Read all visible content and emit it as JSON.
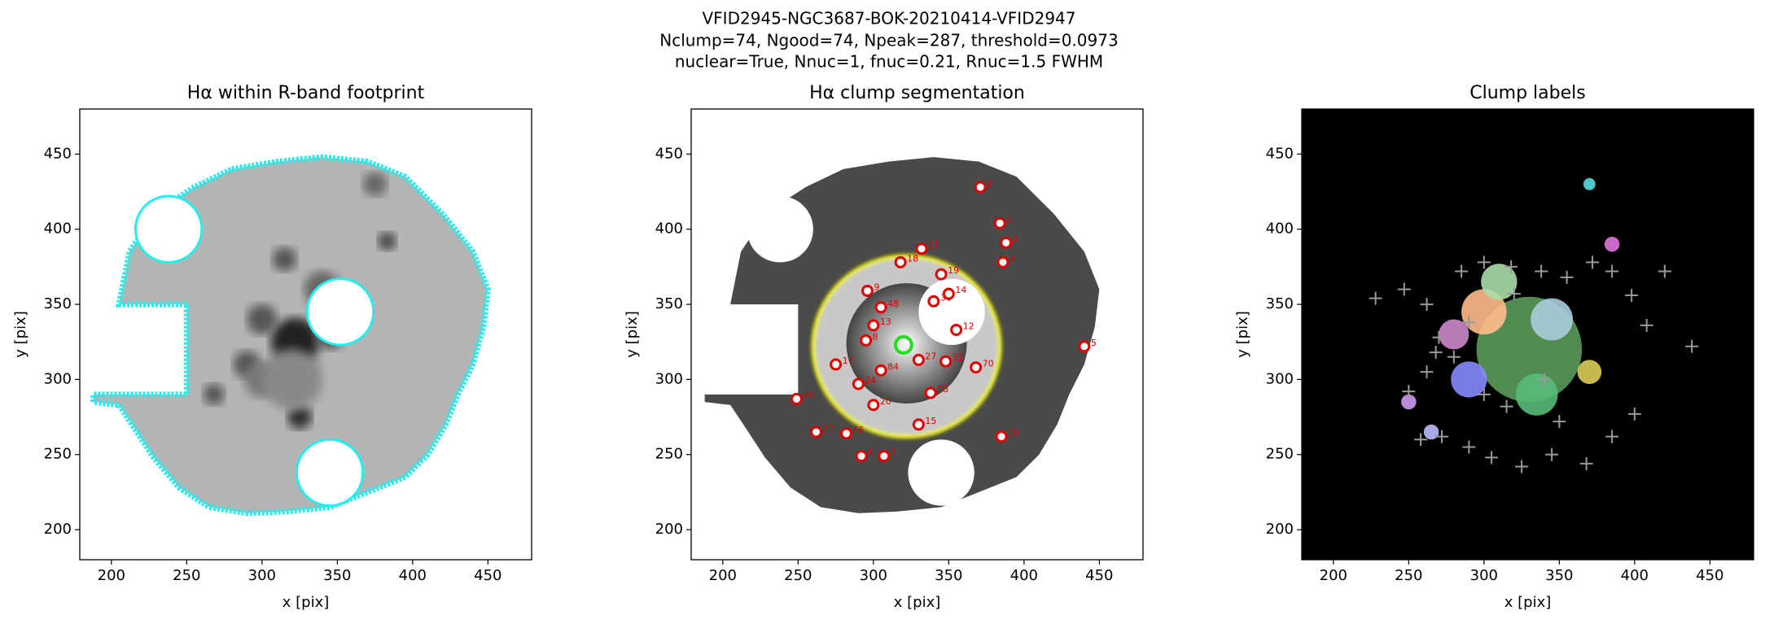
{
  "figure_title": [
    "VFID2945-NGC3687-BOK-20210414-VFID2947",
    "Nclump=74, Ngood=74, Npeak=287, threshold=0.0973",
    "nuclear=True, Nnuc=1, fnuc=0.21, Rnuc=1.5 FWHM"
  ],
  "chart_data": [
    {
      "type": "image",
      "title": "Hα within R-band footprint",
      "xlabel": "x [pix]",
      "ylabel": "y [pix]",
      "xlim": [
        179,
        479
      ],
      "ylim": [
        180,
        480
      ],
      "xticks": [
        200,
        250,
        300,
        350,
        400,
        450
      ],
      "yticks": [
        200,
        250,
        300,
        350,
        400,
        450
      ]
    },
    {
      "type": "segmentation",
      "title": "Hα clump segmentation",
      "xlabel": "x [pix]",
      "ylabel": "y [pix]",
      "xlim": [
        179,
        479
      ],
      "ylim": [
        180,
        480
      ],
      "xticks": [
        200,
        250,
        300,
        350,
        400,
        450
      ],
      "yticks": [
        200,
        250,
        300,
        350,
        400,
        450
      ],
      "nucleus": {
        "x": 320,
        "y": 323
      },
      "x": [
        332,
        305,
        318,
        340,
        355,
        348,
        368,
        338,
        300,
        305,
        296,
        300,
        295,
        388,
        386,
        371,
        384,
        282,
        262,
        249,
        292,
        307,
        440,
        385,
        330,
        345,
        350,
        290,
        330,
        275
      ],
      "y": [
        387,
        348,
        378,
        352,
        333,
        312,
        308,
        291,
        283,
        306,
        359,
        336,
        326,
        391,
        378,
        428,
        404,
        264,
        265,
        287,
        249,
        249,
        322,
        262,
        270,
        370,
        357,
        297,
        313,
        310
      ],
      "labels": [
        "11",
        "48",
        "18",
        "30",
        "12",
        "31",
        "70",
        "28",
        "20",
        "84",
        "9",
        "13",
        "8",
        "3",
        "4",
        "2",
        "1",
        "16",
        "22",
        "40",
        "6",
        "7",
        "5",
        "10",
        "15",
        "19",
        "14",
        "24",
        "27",
        "17"
      ]
    },
    {
      "type": "labels",
      "title": "Clump labels",
      "xlabel": "x [pix]",
      "ylabel": "y [pix]",
      "xlim": [
        179,
        479
      ],
      "ylim": [
        180,
        480
      ],
      "xticks": [
        200,
        250,
        300,
        350,
        400,
        450
      ],
      "yticks": [
        200,
        250,
        300,
        350,
        400,
        450
      ],
      "x": [
        228,
        247,
        262,
        270,
        285,
        300,
        318,
        338,
        355,
        372,
        385,
        398,
        420,
        408,
        438,
        400,
        368,
        345,
        325,
        305,
        290,
        272,
        258,
        250,
        262,
        280,
        300,
        315,
        350,
        385,
        268,
        290,
        320,
        340
      ],
      "y": [
        354,
        360,
        350,
        328,
        372,
        378,
        375,
        372,
        368,
        378,
        372,
        356,
        372,
        336,
        322,
        277,
        244,
        250,
        242,
        248,
        255,
        262,
        260,
        292,
        305,
        315,
        290,
        282,
        272,
        262,
        318,
        338,
        357,
        300
      ]
    }
  ]
}
